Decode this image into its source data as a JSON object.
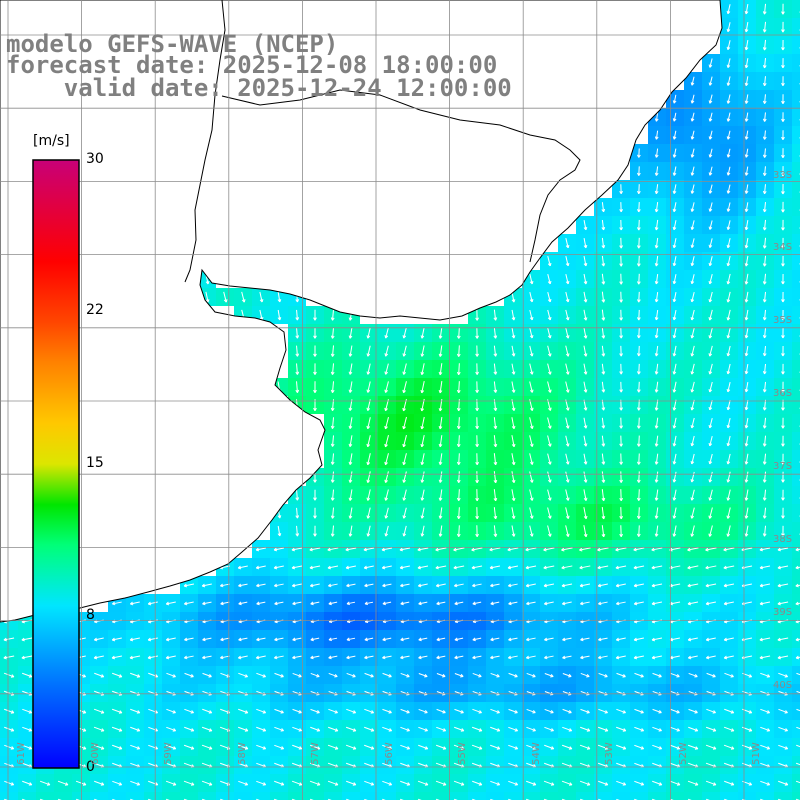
{
  "header": {
    "line1": "modelo GEFS-WAVE (NCEP)",
    "line2": "forecast date: 2025-12-08 18:00:00",
    "line3": "    valid date: 2025-12-24 12:00:00"
  },
  "colorbar": {
    "unit": "[m/s]",
    "ticks": [
      {
        "label": "30",
        "value": 30
      },
      {
        "label": "22",
        "value": 22
      },
      {
        "label": "15",
        "value": 15
      },
      {
        "label": "8",
        "value": 8
      },
      {
        "label": "0",
        "value": 0
      }
    ],
    "min": 0,
    "max": 30
  },
  "grid_labels": {
    "lat": [
      "33S",
      "34S",
      "35S",
      "36S",
      "37S",
      "38S",
      "39S",
      "40S"
    ],
    "lon": [
      "61W",
      "60W",
      "59W",
      "58W",
      "57W",
      "56W",
      "55W",
      "54W",
      "53W",
      "52W",
      "51W"
    ]
  },
  "colors": {
    "land": "#ffffff",
    "coast": "#000000",
    "grid": "#8c8c8c",
    "arrows": "#ffffff",
    "title": "#808080"
  }
}
